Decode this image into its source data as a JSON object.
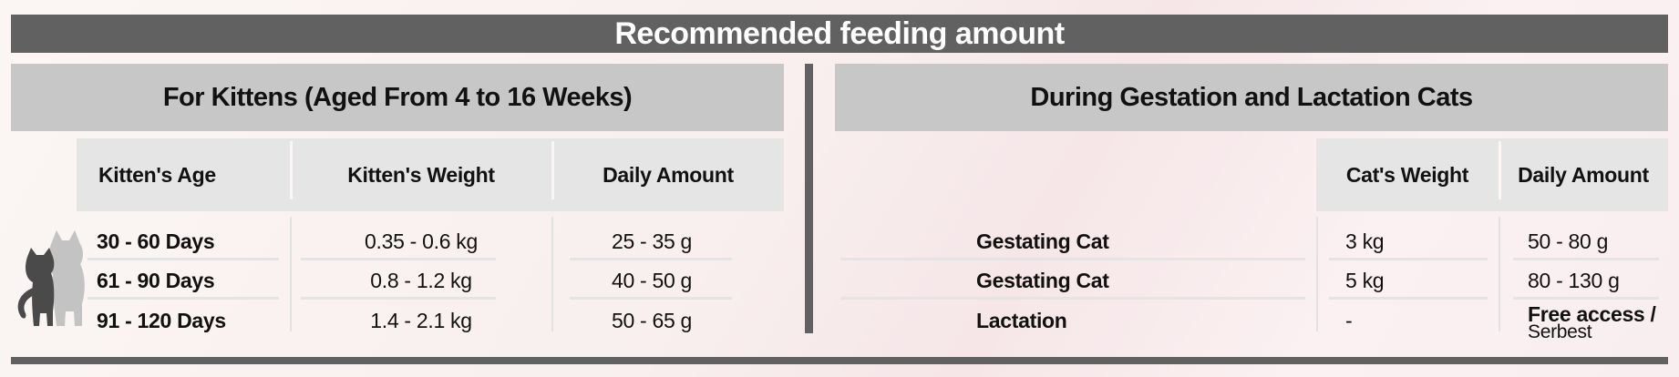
{
  "title": "Recommended feeding amount",
  "kittens": {
    "heading": "For Kittens (Aged From 4 to 16 Weeks)",
    "columns": [
      "Kitten's Age",
      "Kitten's Weight",
      "Daily Amount"
    ],
    "rows": [
      {
        "age": "30 - 60 Days",
        "weight": "0.35 - 0.6 kg",
        "amount": "25 - 35 g"
      },
      {
        "age": "61 - 90 Days",
        "weight": "0.8 - 1.2 kg",
        "amount": "40 - 50 g"
      },
      {
        "age": "91 - 120 Days",
        "weight": "1.4 - 2.1 kg",
        "amount": "50 - 65 g"
      }
    ]
  },
  "gestation": {
    "heading": "During Gestation and Lactation Cats",
    "columns": [
      "Cat's Weight",
      "Daily Amount"
    ],
    "rows": [
      {
        "label": "Gestating Cat",
        "weight": "3 kg",
        "amount": "50 - 80 g",
        "amount_sub": ""
      },
      {
        "label": "Gestating Cat",
        "weight": "5 kg",
        "amount": "80 - 130 g",
        "amount_sub": ""
      },
      {
        "label": "Lactation",
        "weight": "-",
        "amount": "Free access /",
        "amount_sub": "Serbest"
      }
    ]
  },
  "icons": {
    "cat_silhouettes": "cat-kitten-silhouette-icon"
  },
  "colors": {
    "banner": "#616161",
    "panel_header": "#c6c7c6",
    "column_header": "#e5e5e5"
  }
}
